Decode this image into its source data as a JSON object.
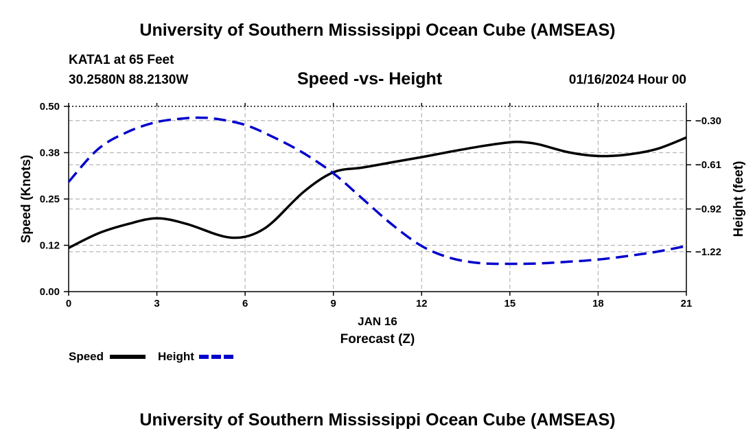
{
  "header": {
    "title": "University of Southern Mississippi Ocean Cube (AMSEAS)",
    "station": "KATA1 at 65 Feet",
    "coordinates": "30.2580N  88.2130W",
    "subtitle": "Speed -vs- Height",
    "datetime": "01/16/2024 Hour 00"
  },
  "footer": {
    "title": "University of Southern Mississippi Ocean Cube (AMSEAS)"
  },
  "chart_data": {
    "type": "line",
    "title": "Speed -vs- Height",
    "xlabel_date": "JAN 16",
    "xlabel": "Forecast (Z)",
    "ylabel_left": "Speed (Knots)",
    "ylabel_right": "Height (feet)",
    "xlim": [
      0,
      21
    ],
    "ylim_left": [
      0,
      0.5
    ],
    "ylim_right": [
      -1.5,
      -0.2
    ],
    "x_ticks": [
      0,
      3,
      6,
      9,
      12,
      15,
      18,
      21
    ],
    "x_tick_labels": [
      "0",
      "3",
      "6",
      "9",
      "12",
      "15",
      "18",
      "21"
    ],
    "left_ticks": [
      0.0,
      0.125,
      0.25,
      0.375,
      0.5
    ],
    "left_tick_labels": [
      "0.00",
      "0.12",
      "0.25",
      "0.38",
      "0.50"
    ],
    "right_ticks": [
      -0.3,
      -0.61,
      -0.92,
      -1.22
    ],
    "right_tick_labels": [
      "-0.30",
      "-0.61",
      "-0.92",
      "-1.22"
    ],
    "grid": true,
    "series": [
      {
        "name": "Speed",
        "axis": "left",
        "color": "#000000",
        "style": "solid",
        "x": [
          0,
          1,
          2,
          3,
          4,
          5,
          5.5,
          6,
          6.5,
          7,
          8,
          9,
          10,
          11,
          12,
          13,
          14,
          15,
          15.5,
          16,
          17,
          18,
          19,
          20,
          21
        ],
        "values": [
          0.118,
          0.157,
          0.182,
          0.198,
          0.183,
          0.155,
          0.146,
          0.148,
          0.163,
          0.192,
          0.27,
          0.322,
          0.335,
          0.349,
          0.363,
          0.378,
          0.392,
          0.403,
          0.403,
          0.397,
          0.376,
          0.366,
          0.37,
          0.385,
          0.416
        ]
      },
      {
        "name": "Height",
        "axis": "right",
        "color": "#0000cc",
        "style": "dashed",
        "x": [
          0,
          1,
          2,
          3,
          4,
          4.5,
          5,
          6,
          7,
          8,
          9,
          10,
          11,
          12,
          13,
          14,
          15,
          16,
          17,
          18,
          19,
          20,
          21
        ],
        "values": [
          -0.73,
          -0.5,
          -0.38,
          -0.31,
          -0.283,
          -0.28,
          -0.287,
          -0.33,
          -0.42,
          -0.53,
          -0.67,
          -0.85,
          -1.03,
          -1.18,
          -1.265,
          -1.3,
          -1.305,
          -1.302,
          -1.29,
          -1.275,
          -1.25,
          -1.22,
          -1.18
        ]
      }
    ],
    "legend": {
      "placement": "bottom-left",
      "items": [
        {
          "label": "Speed",
          "color": "#000000",
          "style": "solid"
        },
        {
          "label": "Height",
          "color": "#0000cc",
          "style": "dashed"
        }
      ]
    }
  }
}
